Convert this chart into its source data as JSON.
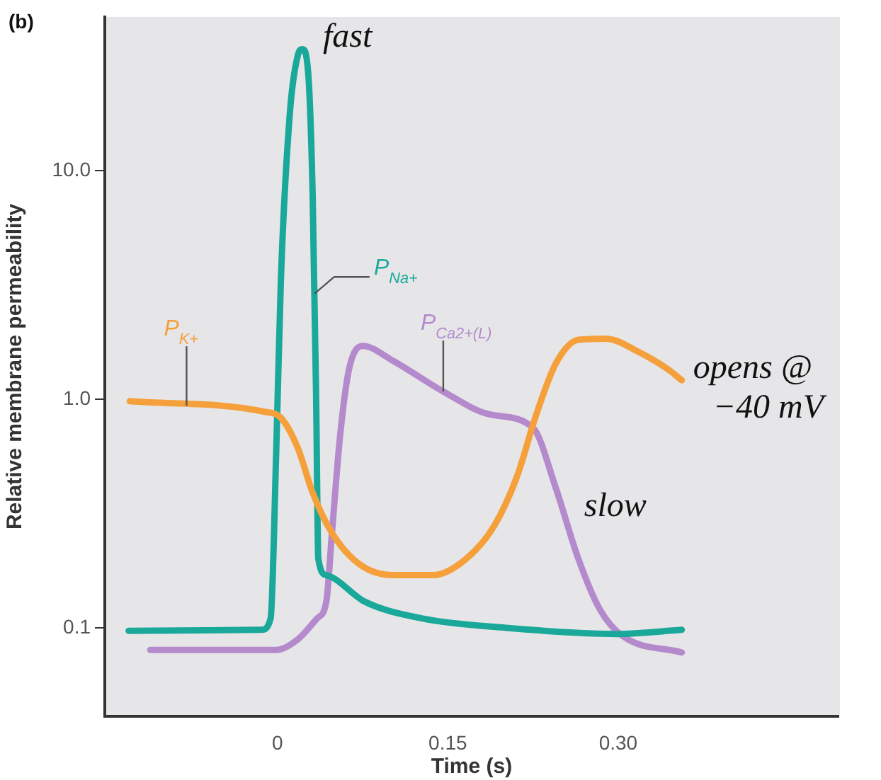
{
  "chart_data": {
    "type": "line",
    "xlabel": "Time (s)",
    "ylabel": "Relative membrane permeability",
    "log": true,
    "legend": false,
    "marker": "none",
    "line_style": "solid",
    "xlim": [
      -0.152,
      0.494
    ],
    "ylim": [
      0.041,
      47
    ],
    "xticks": [
      0,
      0.15,
      {
        "value": 0.3,
        "label": "0.30"
      }
    ],
    "yticks": [
      {
        "value": 0.1,
        "label": "0.1"
      },
      {
        "value": 1,
        "label": "1.0"
      },
      {
        "value": 10,
        "label": "10.0"
      }
    ],
    "series": [
      {
        "name": "P$_{K+}$",
        "color": "#f5a03a",
        "x": [
          -0.13,
          -0.011,
          0.003,
          0.018,
          0.031,
          0.048,
          0.072,
          0.102,
          0.137,
          0.166,
          0.191,
          0.211,
          0.228,
          0.245,
          0.265,
          0.289,
          0.319,
          0.344,
          0.356
        ],
        "values": [
          0.98,
          0.88,
          0.83,
          0.61,
          0.39,
          0.26,
          0.19,
          0.17,
          0.17,
          0.2,
          0.28,
          0.46,
          0.86,
          1.43,
          1.82,
          1.84,
          1.6,
          1.35,
          1.21
        ]
      },
      {
        "name": "P$_{Na+}$",
        "color": "#1aa89a",
        "x": [
          -0.131,
          -0.014,
          -0.006,
          -0.001,
          0.003,
          0.011,
          0.018,
          0.022,
          0.027,
          0.031,
          0.034,
          0.036,
          0.043,
          0.077,
          0.127,
          0.201,
          0.299,
          0.356
        ],
        "values": [
          0.097,
          0.098,
          0.11,
          0.61,
          3.3,
          18,
          32,
          34,
          27,
          7.8,
          1.07,
          0.2,
          0.17,
          0.13,
          0.11,
          0.1,
          0.094,
          0.098
        ]
      },
      {
        "name": "P$_{Ca2+(L)}$",
        "color": "#b48acd",
        "x": [
          -0.112,
          -0.001,
          0.018,
          0.035,
          0.043,
          0.048,
          0.055,
          0.063,
          0.075,
          0.102,
          0.146,
          0.186,
          0.225,
          0.245,
          0.265,
          0.284,
          0.304,
          0.356
        ],
        "values": [
          0.08,
          0.08,
          0.089,
          0.11,
          0.13,
          0.26,
          0.68,
          1.35,
          1.71,
          1.47,
          1.08,
          0.86,
          0.75,
          0.41,
          0.2,
          0.12,
          0.092,
          0.078
        ]
      }
    ],
    "annotations": [
      "(b)",
      {
        "text": "fast",
        "x": 0.03,
        "y": 34
      },
      {
        "text": "slow",
        "x": 0.26,
        "y": 0.3
      },
      {
        "text": "opens @ −40 mV",
        "x": 0.356,
        "y": 1.21
      }
    ]
  }
}
